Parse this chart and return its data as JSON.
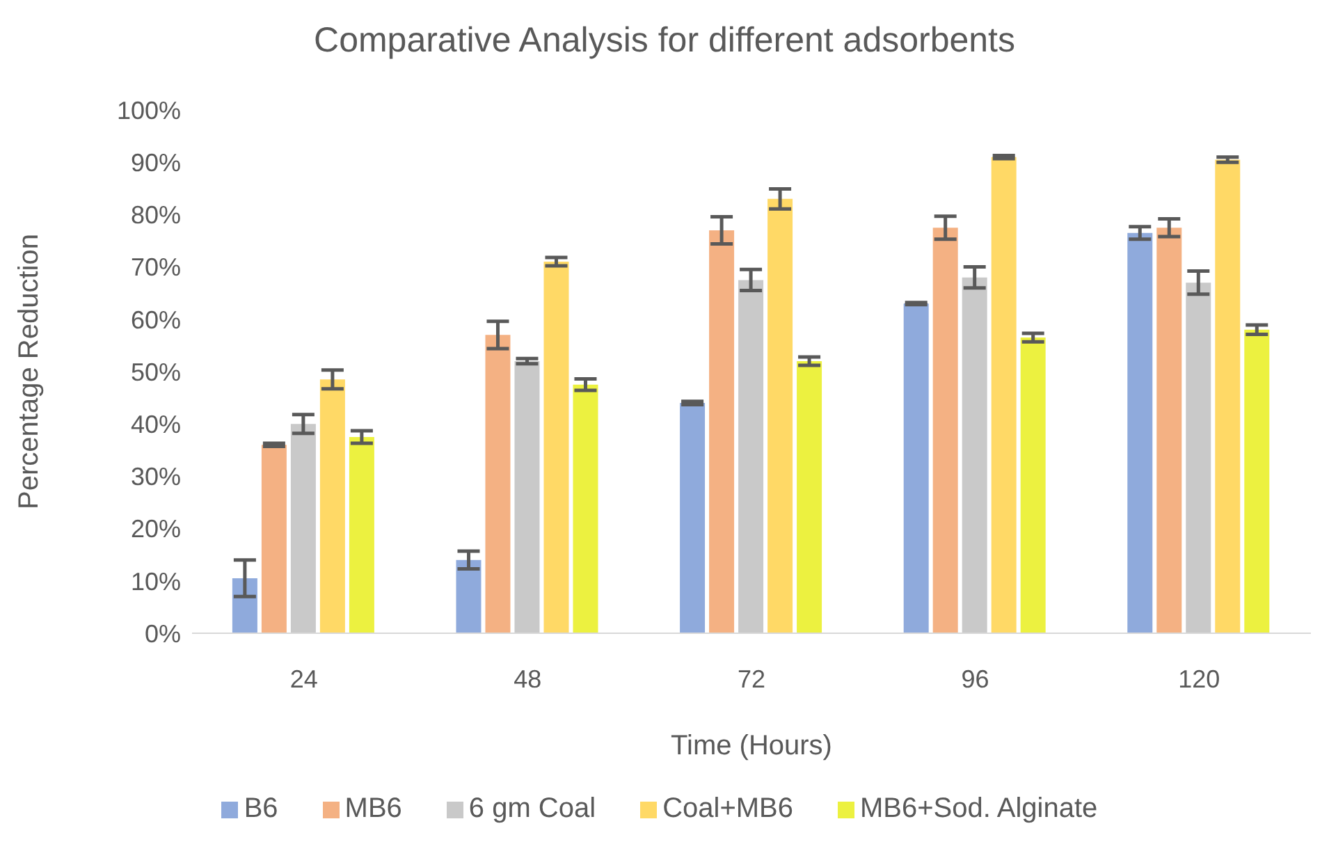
{
  "chart_data": {
    "type": "bar",
    "title": "Comparative Analysis for different adsorbents",
    "xlabel": "Time (Hours)",
    "ylabel": "Percentage Reduction",
    "categories": [
      "24",
      "48",
      "72",
      "96",
      "120"
    ],
    "series": [
      {
        "name": "B6",
        "color": "#8faadc",
        "values": [
          10.5,
          14,
          44,
          63,
          76.5
        ],
        "errors": [
          3.5,
          1.7,
          0.3,
          0.2,
          1.2
        ]
      },
      {
        "name": "MB6",
        "color": "#f4b183",
        "values": [
          36,
          57,
          77,
          77.5,
          77.5
        ],
        "errors": [
          0.3,
          2.6,
          2.6,
          2.2,
          1.7
        ]
      },
      {
        "name": "6 gm Coal",
        "color": "#c9c9c9",
        "values": [
          40,
          52,
          67.5,
          68,
          67
        ],
        "errors": [
          1.8,
          0.5,
          2,
          2,
          2.2
        ]
      },
      {
        "name": "Coal+MB6",
        "color": "#ffd966",
        "values": [
          48.5,
          71,
          83,
          91,
          90.5
        ],
        "errors": [
          1.8,
          0.8,
          1.9,
          0.3,
          0.5
        ]
      },
      {
        "name": "MB6+Sod. Alginate",
        "color": "#ecf140",
        "values": [
          37.5,
          47.5,
          52,
          56.5,
          58
        ],
        "errors": [
          1.2,
          1.1,
          0.8,
          0.8,
          0.9
        ]
      }
    ],
    "ylim": [
      0,
      100
    ],
    "yticks": [
      {
        "value": 0,
        "label": "0%"
      },
      {
        "value": 10,
        "label": "10%"
      },
      {
        "value": 20,
        "label": "20%"
      },
      {
        "value": 30,
        "label": "30%"
      },
      {
        "value": 40,
        "label": "40%"
      },
      {
        "value": 50,
        "label": "50%"
      },
      {
        "value": 60,
        "label": "60%"
      },
      {
        "value": 70,
        "label": "70%"
      },
      {
        "value": 80,
        "label": "80%"
      },
      {
        "value": 90,
        "label": "90%"
      },
      {
        "value": 100,
        "label": "100%"
      }
    ],
    "grid": false,
    "legend": "bottom"
  }
}
